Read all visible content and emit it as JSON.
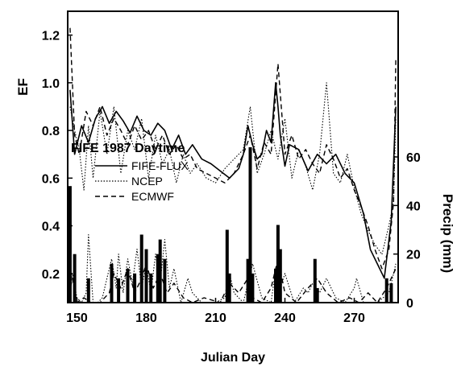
{
  "chart_data": {
    "type": "line",
    "title": "FIFE 1987 Daytime",
    "xlabel": "Julian Day",
    "ylabel_left": "EF",
    "ylabel_right": "Precip (mm)",
    "xlim": [
      146,
      289
    ],
    "x_ticks": [
      150,
      180,
      210,
      240,
      270
    ],
    "ef_ylim": [
      0.0,
      1.3
    ],
    "ef_ticks": [
      0.2,
      0.4,
      0.6,
      0.8,
      1.0,
      1.2
    ],
    "precip_ylim": [
      0,
      120
    ],
    "precip_ticks": [
      0,
      20,
      40,
      60
    ],
    "legend": {
      "placement": "middle-left",
      "entries": [
        {
          "name": "FIFE-FLUX",
          "style": "solid"
        },
        {
          "name": "NCEP",
          "style": "dotted"
        },
        {
          "name": "ECMWF",
          "style": "dashed"
        }
      ]
    },
    "ef_series": [
      {
        "name": "FIFE-FLUX",
        "style": "solid",
        "x": [
          147,
          149,
          152,
          155,
          158,
          161,
          164,
          167,
          170,
          173,
          176,
          179,
          182,
          185,
          188,
          191,
          194,
          197,
          200,
          204,
          208,
          212,
          216,
          220,
          222,
          224,
          226,
          228,
          230,
          232,
          234,
          236,
          237,
          238,
          240,
          242,
          246,
          250,
          254,
          258,
          262,
          266,
          270,
          274,
          277,
          280,
          283,
          286,
          288
        ],
        "values": [
          0.97,
          0.7,
          0.82,
          0.75,
          0.85,
          0.9,
          0.83,
          0.88,
          0.84,
          0.79,
          0.86,
          0.8,
          0.78,
          0.83,
          0.8,
          0.72,
          0.78,
          0.7,
          0.74,
          0.68,
          0.66,
          0.63,
          0.6,
          0.64,
          0.7,
          0.82,
          0.74,
          0.68,
          0.7,
          0.8,
          0.75,
          1.0,
          0.9,
          0.78,
          0.65,
          0.74,
          0.72,
          0.63,
          0.7,
          0.66,
          0.7,
          0.62,
          0.58,
          0.45,
          0.3,
          0.24,
          0.18,
          0.42,
          0.9
        ]
      },
      {
        "name": "NCEP",
        "style": "dotted",
        "x": [
          147,
          149,
          151,
          153,
          155,
          157,
          160,
          163,
          166,
          169,
          172,
          175,
          178,
          181,
          184,
          187,
          190,
          193,
          196,
          199,
          202,
          206,
          210,
          214,
          218,
          222,
          225,
          228,
          231,
          234,
          237,
          240,
          243,
          246,
          249,
          252,
          255,
          258,
          261,
          264,
          267,
          270,
          273,
          276,
          279,
          282,
          285,
          287,
          288
        ],
        "values": [
          0.9,
          0.8,
          0.72,
          0.55,
          0.82,
          0.6,
          0.88,
          0.7,
          0.9,
          0.62,
          0.8,
          0.72,
          0.85,
          0.6,
          0.78,
          0.66,
          0.72,
          0.58,
          0.7,
          0.62,
          0.66,
          0.6,
          0.58,
          0.64,
          0.68,
          0.72,
          0.9,
          0.62,
          0.7,
          0.8,
          0.68,
          0.85,
          0.6,
          0.72,
          0.65,
          0.55,
          0.7,
          1.0,
          0.62,
          0.58,
          0.7,
          0.56,
          0.45,
          0.38,
          0.32,
          0.28,
          0.4,
          0.5,
          0.85
        ]
      },
      {
        "name": "ECMWF",
        "style": "dashed",
        "x": [
          147,
          149,
          151,
          154,
          157,
          160,
          163,
          166,
          169,
          172,
          175,
          178,
          181,
          184,
          187,
          190,
          193,
          196,
          199,
          202,
          206,
          210,
          214,
          218,
          222,
          225,
          228,
          231,
          234,
          237,
          240,
          243,
          246,
          249,
          252,
          255,
          258,
          261,
          264,
          267,
          270,
          273,
          276,
          279,
          282,
          285,
          287,
          288
        ],
        "values": [
          1.23,
          0.78,
          0.7,
          0.88,
          0.82,
          0.9,
          0.78,
          0.85,
          0.8,
          0.74,
          0.82,
          0.76,
          0.8,
          0.72,
          0.78,
          0.7,
          0.74,
          0.68,
          0.7,
          0.64,
          0.62,
          0.6,
          0.58,
          0.62,
          0.7,
          0.78,
          0.64,
          0.75,
          0.7,
          1.08,
          0.7,
          0.78,
          0.68,
          0.72,
          0.66,
          0.62,
          0.74,
          0.68,
          0.6,
          0.64,
          0.55,
          0.48,
          0.4,
          0.3,
          0.22,
          0.3,
          0.5,
          1.1
        ]
      }
    ],
    "precip_bars": {
      "x": [
        147,
        149,
        155,
        165,
        168,
        172,
        175,
        178,
        180,
        182,
        185,
        186,
        188,
        215,
        216,
        224,
        225,
        226,
        236,
        237,
        238,
        253,
        254,
        284,
        286
      ],
      "values": [
        48,
        20,
        10,
        16,
        10,
        14,
        12,
        28,
        22,
        12,
        20,
        26,
        18,
        30,
        12,
        18,
        64,
        12,
        14,
        32,
        22,
        18,
        6,
        10,
        8
      ]
    },
    "precip_series": [
      {
        "name": "NCEP",
        "style": "dotted",
        "x": [
          146,
          148,
          150,
          152,
          154,
          155,
          157,
          159,
          161,
          163,
          165,
          167,
          168,
          170,
          172,
          174,
          176,
          178,
          180,
          182,
          184,
          186,
          188,
          190,
          192,
          195,
          198,
          200,
          204,
          210,
          214,
          216,
          218,
          222,
          224,
          226,
          230,
          234,
          236,
          238,
          240,
          244,
          248,
          250,
          252,
          255,
          258,
          262,
          266,
          270,
          271,
          274,
          280,
          285,
          287,
          288
        ],
        "values": [
          0,
          12,
          2,
          0,
          4,
          28,
          0,
          0,
          2,
          10,
          18,
          6,
          20,
          4,
          18,
          8,
          22,
          6,
          16,
          4,
          20,
          8,
          26,
          6,
          14,
          0,
          10,
          4,
          0,
          0,
          2,
          12,
          4,
          0,
          8,
          16,
          2,
          0,
          14,
          6,
          12,
          0,
          6,
          4,
          8,
          4,
          10,
          2,
          0,
          6,
          10,
          0,
          0,
          4,
          12,
          16
        ]
      },
      {
        "name": "ECMWF",
        "style": "dashed",
        "x": [
          146,
          148,
          150,
          153,
          156,
          160,
          164,
          166,
          169,
          172,
          175,
          178,
          180,
          183,
          186,
          189,
          192,
          196,
          200,
          205,
          212,
          216,
          220,
          224,
          226,
          230,
          234,
          237,
          240,
          245,
          250,
          254,
          258,
          263,
          268,
          272,
          276,
          280,
          284,
          286,
          288
        ],
        "values": [
          0,
          10,
          0,
          2,
          0,
          0,
          4,
          12,
          6,
          14,
          4,
          10,
          16,
          6,
          12,
          4,
          8,
          2,
          0,
          2,
          0,
          8,
          4,
          10,
          2,
          0,
          6,
          18,
          4,
          0,
          6,
          10,
          4,
          0,
          2,
          0,
          4,
          0,
          6,
          10,
          14
        ]
      }
    ]
  }
}
